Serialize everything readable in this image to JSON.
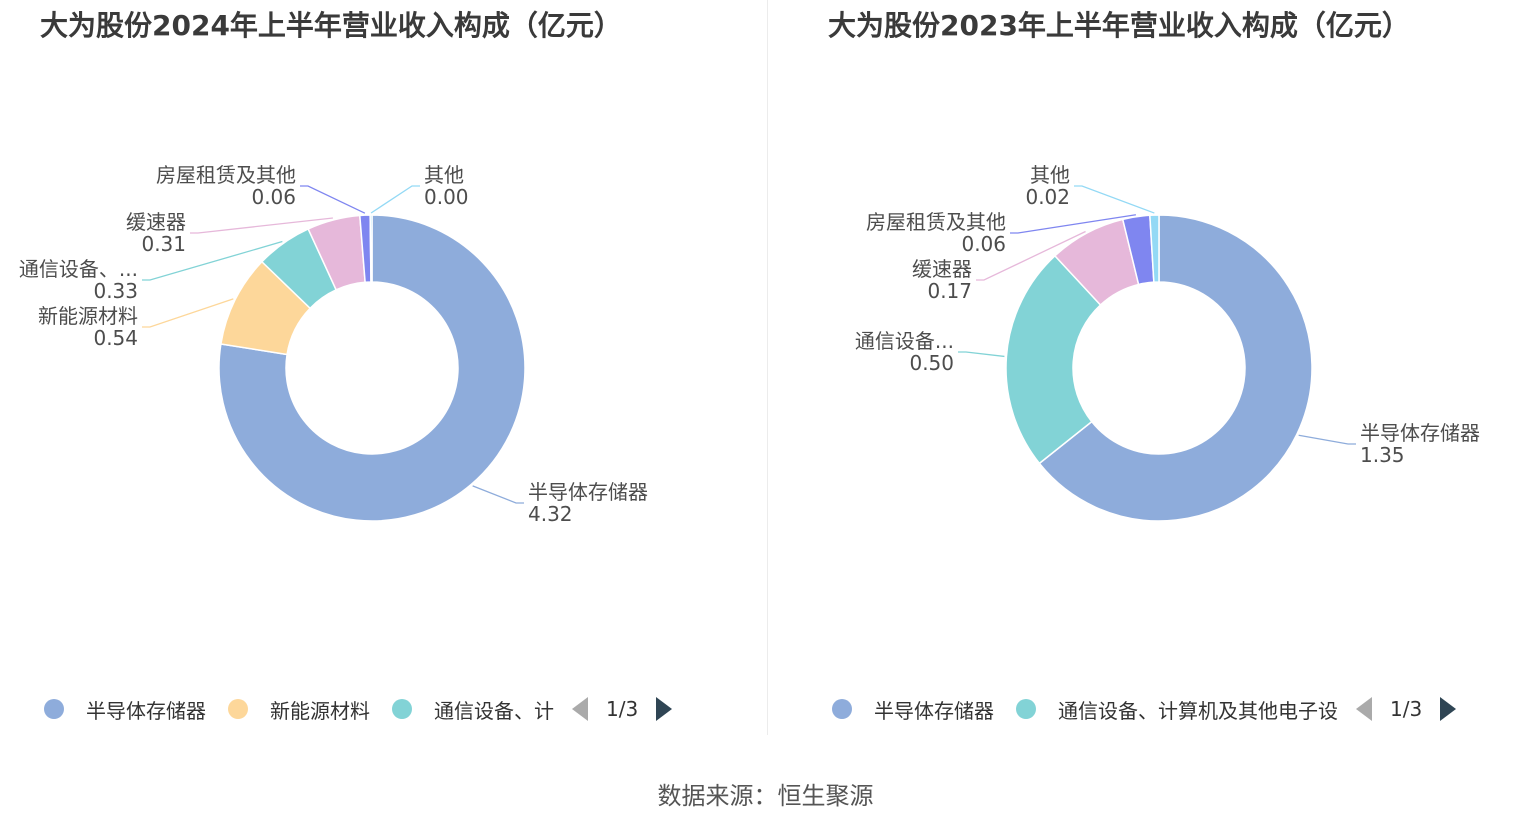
{
  "chart_data": [
    {
      "type": "pie",
      "title": "大为股份2024年上半年营业收入构成（亿元）",
      "labels": [
        "半导体存储器",
        "新能源材料",
        "通信设备、...",
        "缓速器",
        "房屋租赁及其他",
        "其他"
      ],
      "values": [
        4.32,
        0.54,
        0.33,
        0.31,
        0.06,
        0.0
      ],
      "value_labels": [
        "4.32",
        "0.54",
        "0.33",
        "0.31",
        "0.06",
        "0.00"
      ],
      "colors": [
        "#8eacdb",
        "#fdd79a",
        "#82d3d6",
        "#e6b8da",
        "#7f86f0",
        "#93d9f5"
      ],
      "legend": {
        "items": [
          {
            "label": "半导体存储器",
            "color": "#8eacdb"
          },
          {
            "label": "新能源材料",
            "color": "#fdd79a"
          },
          {
            "label": "通信设备、计",
            "color": "#82d3d6"
          }
        ],
        "page": "1/3",
        "position": "bottom"
      }
    },
    {
      "type": "pie",
      "title": "大为股份2023年上半年营业收入构成（亿元）",
      "labels": [
        "半导体存储器",
        "通信设备...",
        "缓速器",
        "房屋租赁及其他",
        "其他"
      ],
      "values": [
        1.35,
        0.5,
        0.17,
        0.06,
        0.02
      ],
      "value_labels": [
        "1.35",
        "0.50",
        "0.17",
        "0.06",
        "0.02"
      ],
      "colors": [
        "#8eacdb",
        "#82d3d6",
        "#e6b8da",
        "#7f86f0",
        "#93d9f5"
      ],
      "legend": {
        "items": [
          {
            "label": "半导体存储器",
            "color": "#8eacdb"
          },
          {
            "label": "通信设备、计算机及其他电子设",
            "color": "#82d3d6"
          }
        ],
        "page": "1/3",
        "position": "bottom"
      }
    }
  ],
  "footer": {
    "source": "数据来源：恒生聚源"
  }
}
